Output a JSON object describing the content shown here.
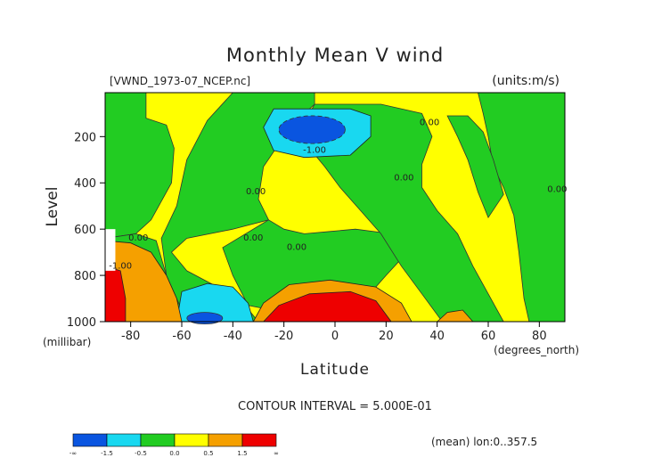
{
  "chart_data": {
    "type": "heatmap",
    "title": "Monthly Mean V wind",
    "file_label": "[VWND_1973-07_NCEP.nc]",
    "units_label": "(units:m/s)",
    "xlabel": "Latitude",
    "xunit": "(degrees_north)",
    "ylabel": "Level",
    "yunit": "(millibar)",
    "xlim": [
      -90,
      90
    ],
    "ylim": [
      1000,
      10
    ],
    "x_ticks": [
      -80,
      -60,
      -40,
      -20,
      0,
      20,
      40,
      60,
      80
    ],
    "y_ticks": [
      200,
      400,
      600,
      800,
      1000
    ],
    "contour_interval_text": "CONTOUR INTERVAL = 5.000E-01",
    "footer_text": "(mean) lon:0..357.5",
    "contour_labels": [
      {
        "text": "-1.00",
        "x": -8,
        "y": 270
      },
      {
        "text": "0.00",
        "x": -77,
        "y": 650
      },
      {
        "text": "-1.00",
        "x": -84,
        "y": 770
      },
      {
        "text": "0.00",
        "x": -32,
        "y": 650
      },
      {
        "text": "0.00",
        "x": -15,
        "y": 690
      },
      {
        "text": "0.00",
        "x": -31,
        "y": 450
      },
      {
        "text": "0.00",
        "x": 27,
        "y": 390
      },
      {
        "text": "0.00",
        "x": 37,
        "y": 150
      },
      {
        "text": "0.00",
        "x": 87,
        "y": 440
      }
    ],
    "legend": {
      "colors": [
        "#0a55e0",
        "#19d8f0",
        "#22cc22",
        "#ffff00",
        "#f5a000",
        "#ee0000"
      ],
      "labels": [
        "-∞",
        "-1.5",
        "-0.5",
        "0.0",
        "0.5",
        "1.5",
        "∞"
      ]
    },
    "fill_colors": {
      "neg_strong": "#0a55e0",
      "neg_weak": "#19d8f0",
      "near_zero_neg": "#22cc22",
      "near_zero_pos": "#ffff00",
      "pos_weak": "#f5a000",
      "pos_strong": "#ee0000"
    }
  }
}
